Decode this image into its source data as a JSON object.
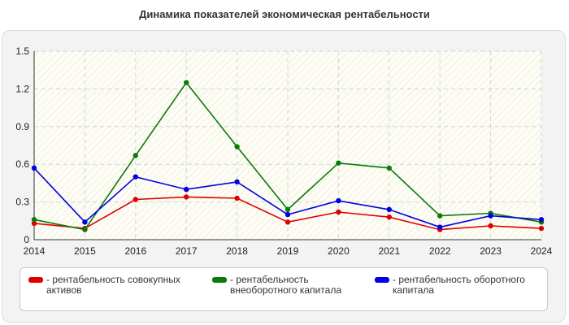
{
  "title": "Динамика показателей экономическая рентабельности",
  "chart_data": {
    "type": "line",
    "x": [
      "2014",
      "2015",
      "2016",
      "2017",
      "2018",
      "2019",
      "2020",
      "2021",
      "2022",
      "2023",
      "2024"
    ],
    "ylim": [
      0,
      1.5
    ],
    "yticks": [
      "0",
      "0.3",
      "0.6",
      "0.9",
      "1.2",
      "1.5"
    ],
    "grid": true,
    "legend_position": "bottom",
    "series": [
      {
        "name": "- рентабельность совокупных активов",
        "color": "#e00000",
        "values": [
          0.13,
          0.09,
          0.32,
          0.34,
          0.33,
          0.14,
          0.22,
          0.18,
          0.08,
          0.11,
          0.09
        ]
      },
      {
        "name": "- рентабельность внеоборотного капитала",
        "color": "#0a7a0a",
        "values": [
          0.16,
          0.08,
          0.67,
          1.25,
          0.74,
          0.24,
          0.61,
          0.57,
          0.19,
          0.21,
          0.14
        ]
      },
      {
        "name": "- рентабельность оборотного капитала",
        "color": "#0000e0",
        "values": [
          0.57,
          0.14,
          0.5,
          0.4,
          0.46,
          0.2,
          0.31,
          0.24,
          0.1,
          0.19,
          0.16
        ]
      }
    ]
  }
}
